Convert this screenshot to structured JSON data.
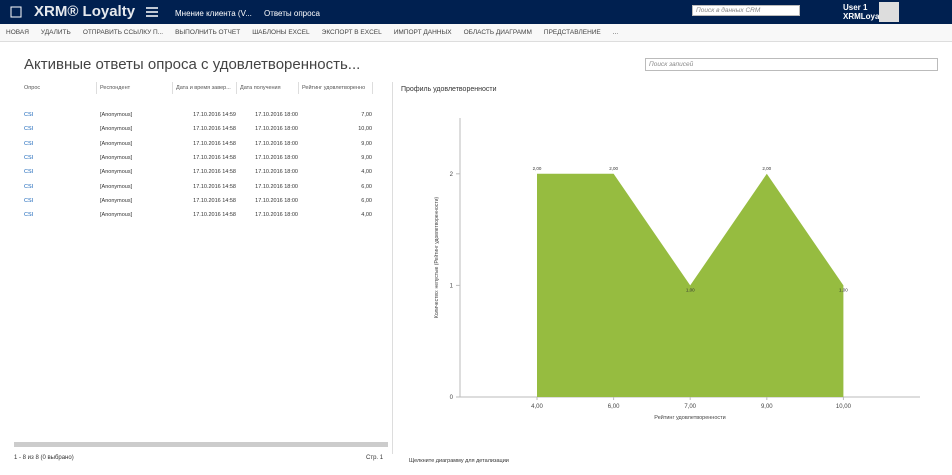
{
  "nav": {
    "brand": "XRM® Loyalty",
    "breadcrumb": [
      "Мнение клиента (V...",
      "Ответы опроса"
    ],
    "search_placeholder": "Поиск в данных CRM",
    "user": "User 1",
    "org": "XRMLoyalty"
  },
  "toolbar": [
    "НОВАЯ",
    "УДАЛИТЬ",
    "ОТПРАВИТЬ ССЫЛКУ П...",
    "ВЫПОЛНИТЬ ОТЧЕТ",
    "ШАБЛОНЫ EXCEL",
    "ЭКСПОРТ В EXCEL",
    "ИМПОРТ ДАННЫХ",
    "ОБЛАСТЬ ДИАГРАММ",
    "ПРЕДСТАВЛЕНИЕ",
    "..."
  ],
  "view": {
    "title": "Активные ответы опроса с удовлетворенность...",
    "search_placeholder": "Поиск записей"
  },
  "table": {
    "columns": [
      "Опрос",
      "Респондент",
      "Дата и время завер...",
      "Дата получения",
      "Рейтинг удовлетворенно"
    ],
    "rows": [
      [
        "CSI",
        "[Anonymous]",
        "17.10.2016 14:59",
        "17.10.2016 18:00",
        "7,00"
      ],
      [
        "CSI",
        "[Anonymous]",
        "17.10.2016 14:58",
        "17.10.2016 18:00",
        "10,00"
      ],
      [
        "CSI",
        "[Anonymous]",
        "17.10.2016 14:58",
        "17.10.2016 18:00",
        "9,00"
      ],
      [
        "CSI",
        "[Anonymous]",
        "17.10.2016 14:58",
        "17.10.2016 18:00",
        "9,00"
      ],
      [
        "CSI",
        "[Anonymous]",
        "17.10.2016 14:58",
        "17.10.2016 18:00",
        "4,00"
      ],
      [
        "CSI",
        "[Anonymous]",
        "17.10.2016 14:58",
        "17.10.2016 18:00",
        "6,00"
      ],
      [
        "CSI",
        "[Anonymous]",
        "17.10.2016 14:58",
        "17.10.2016 18:00",
        "6,00"
      ],
      [
        "CSI",
        "[Anonymous]",
        "17.10.2016 14:58",
        "17.10.2016 18:00",
        "4,00"
      ]
    ],
    "status": "1 - 8 из 8 (0 выбрано)",
    "page": "Стр. 1"
  },
  "chart_footer": "Щелкните диаграмму для детализации",
  "chart_data": {
    "type": "area",
    "title": "Профиль удовлетворенности",
    "x_label": "Рейтинг удовлетворенности",
    "y_label": "Количество: непустые (Рейтинг удовлетворенности)",
    "categories": [
      "4,00",
      "6,00",
      "7,00",
      "9,00",
      "10,00"
    ],
    "values": [
      2,
      2,
      1,
      2,
      1
    ],
    "value_labels": [
      "2,00",
      "2,00",
      "1,00",
      "2,00",
      "1,00"
    ],
    "color": "#96bc40",
    "ylim": [
      0,
      2.5
    ],
    "yticks": [
      0,
      1,
      2
    ],
    "grid": false
  }
}
